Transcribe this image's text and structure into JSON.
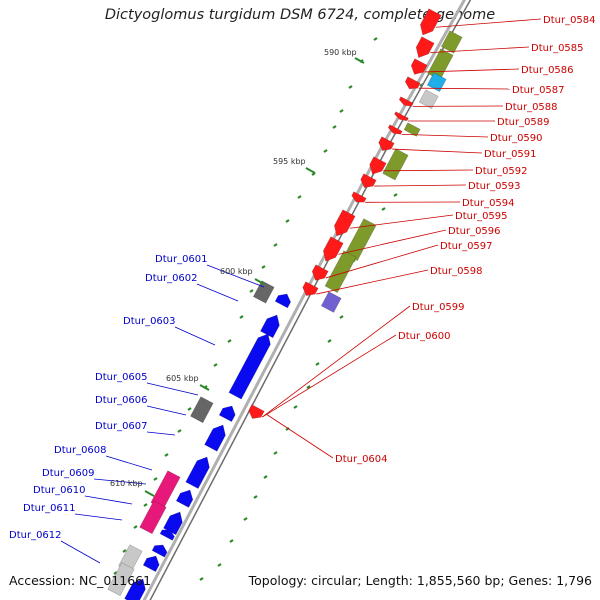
{
  "title": "Dictyoglomus turgidum DSM 6724, complete genome",
  "accession": "Accession: NC_011661",
  "summary": "Topology: circular; Length: 1,855,560 bp; Genes: 1,796",
  "colors": {
    "plus_strand_label": "#cc0000",
    "minus_strand_label": "#0000cc",
    "plus_gene": "#ff1a1a",
    "minus_gene": "#0a0af0",
    "cog_olive": "#7e9a2a",
    "cog_gray": "#666666",
    "cog_pink": "#e8187a",
    "cog_cyan": "#1eaee8",
    "cog_purple": "#7060d0",
    "cog_lightgray": "#c8c8c8",
    "gc_skew": "#2a8a2a"
  },
  "ticks": [
    "590 kbp",
    "595 kbp",
    "600 kbp",
    "605 kbp",
    "610 kbp"
  ],
  "genes_plus": [
    "Dtur_0584",
    "Dtur_0585",
    "Dtur_0586",
    "Dtur_0587",
    "Dtur_0588",
    "Dtur_0589",
    "Dtur_0590",
    "Dtur_0591",
    "Dtur_0592",
    "Dtur_0593",
    "Dtur_0594",
    "Dtur_0595",
    "Dtur_0596",
    "Dtur_0597",
    "Dtur_0598",
    "Dtur_0599",
    "Dtur_0600",
    "Dtur_0604"
  ],
  "genes_minus": [
    "Dtur_0601",
    "Dtur_0602",
    "Dtur_0603",
    "Dtur_0605",
    "Dtur_0606",
    "Dtur_0607",
    "Dtur_0608",
    "Dtur_0609",
    "Dtur_0610",
    "Dtur_0611",
    "Dtur_0612"
  ]
}
